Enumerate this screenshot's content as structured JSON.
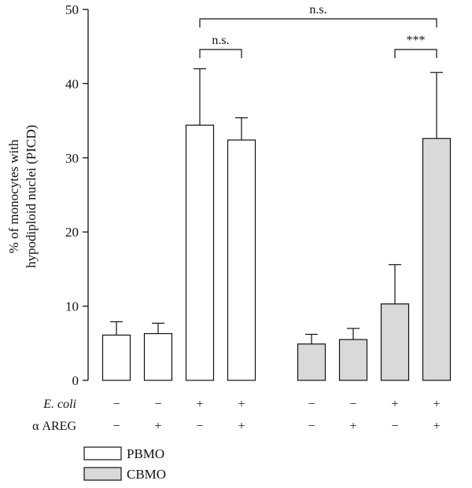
{
  "chart_data": {
    "type": "bar",
    "ylabel_line1": "% of monocytes with",
    "ylabel_line2": "hypodiploid nuclei (PICD)",
    "ylim": [
      0,
      50
    ],
    "yticks": [
      0,
      10,
      20,
      30,
      40,
      50
    ],
    "grid": false,
    "legend_position": "bottom-left",
    "series": [
      {
        "name": "PBMO",
        "color": "#ffffff",
        "values": [
          6.1,
          6.3,
          34.4,
          32.4
        ],
        "errors": [
          1.8,
          1.4,
          7.6,
          3.0
        ]
      },
      {
        "name": "CBMO",
        "color": "#d9d9d9",
        "values": [
          4.9,
          5.5,
          10.3,
          32.6
        ],
        "errors": [
          1.3,
          1.5,
          5.3,
          8.9
        ]
      }
    ],
    "treatment_rows": [
      {
        "label": "E. coli",
        "signs": [
          "−",
          "−",
          "+",
          "+",
          "−",
          "−",
          "+",
          "+"
        ]
      },
      {
        "label": "α AREG",
        "signs": [
          "−",
          "+",
          "−",
          "+",
          "−",
          "+",
          "−",
          "+"
        ]
      }
    ],
    "annotations": [
      {
        "text": "n.s.",
        "from_bar": 2,
        "to_bar": 3
      },
      {
        "text": "n.s.",
        "from_bar": 2,
        "to_bar": 7
      },
      {
        "text": "***",
        "from_bar": 6,
        "to_bar": 7
      }
    ]
  }
}
